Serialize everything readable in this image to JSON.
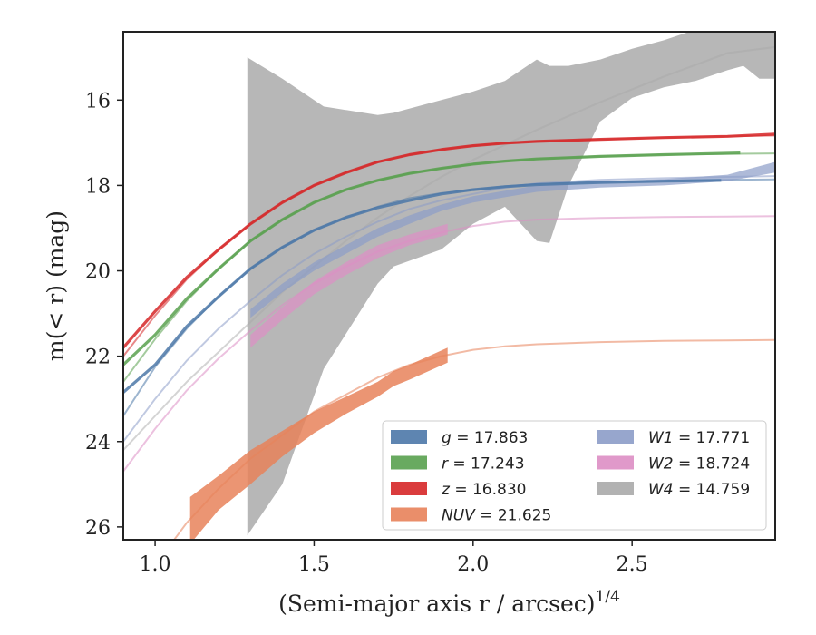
{
  "chart_data": {
    "type": "line",
    "xlabel": "(Semi-major axis r / arcsec)^{1/4}",
    "ylabel": "m(< r) (mag)",
    "xlim": [
      0.9,
      2.95
    ],
    "ylim": [
      26.3,
      14.4
    ],
    "y_inverted": true,
    "xticks": [
      "1.0",
      "1.5",
      "2.0",
      "2.5"
    ],
    "xtick_values": [
      1.0,
      1.5,
      2.0,
      2.5
    ],
    "yticks": [
      "16",
      "18",
      "20",
      "22",
      "24",
      "26"
    ],
    "ytick_values": [
      16,
      18,
      20,
      22,
      24,
      26
    ],
    "grid": false,
    "legend_position": "lower-right",
    "legend": [
      {
        "key": "g",
        "label": "g = 17.863",
        "color": "#4c78a8"
      },
      {
        "key": "r",
        "label": "r = 17.243",
        "color": "#59a14f"
      },
      {
        "key": "z",
        "label": "z = 16.830",
        "color": "#d62728"
      },
      {
        "key": "nuv",
        "label": "NUV = 21.625",
        "color": "#e8825a"
      },
      {
        "key": "w1",
        "label": "W1 = 17.771",
        "color": "#8c9cc8"
      },
      {
        "key": "w2",
        "label": "W2 = 18.724",
        "color": "#dd8ec4"
      },
      {
        "key": "w4",
        "label": "W4 = 14.759",
        "color": "#aaaaaa"
      }
    ],
    "series": [
      {
        "name": "g = 17.863",
        "key": "g",
        "color": "#4c78a8",
        "model_x": [
          0.9,
          1.0,
          1.1,
          1.2,
          1.3,
          1.4,
          1.5,
          1.6,
          1.7,
          1.8,
          1.9,
          2.0,
          2.1,
          2.2,
          2.4,
          2.6,
          2.8,
          2.95
        ],
        "model_y": [
          23.4,
          22.25,
          21.35,
          20.6,
          19.95,
          19.45,
          19.05,
          18.75,
          18.5,
          18.3,
          18.18,
          18.1,
          18.02,
          17.97,
          17.92,
          17.89,
          17.87,
          17.86
        ],
        "data_x": [
          0.9,
          1.0,
          1.1,
          1.2,
          1.3,
          1.4,
          1.5,
          1.6,
          1.7,
          1.8,
          1.9,
          2.0,
          2.1,
          2.2,
          2.4,
          2.6,
          2.78
        ],
        "data_y": [
          22.85,
          22.2,
          21.3,
          20.6,
          19.95,
          19.45,
          19.05,
          18.75,
          18.52,
          18.35,
          18.2,
          18.1,
          18.03,
          17.98,
          17.93,
          17.9,
          17.88
        ]
      },
      {
        "name": "r = 17.243",
        "key": "r",
        "color": "#59a14f",
        "model_x": [
          0.9,
          1.0,
          1.1,
          1.2,
          1.3,
          1.4,
          1.5,
          1.6,
          1.7,
          1.8,
          1.9,
          2.0,
          2.1,
          2.2,
          2.4,
          2.6,
          2.8,
          2.95
        ],
        "model_y": [
          22.6,
          21.6,
          20.7,
          19.95,
          19.3,
          18.8,
          18.4,
          18.1,
          17.88,
          17.72,
          17.6,
          17.5,
          17.43,
          17.38,
          17.32,
          17.28,
          17.26,
          17.25
        ],
        "data_x": [
          0.9,
          1.0,
          1.1,
          1.2,
          1.3,
          1.4,
          1.5,
          1.6,
          1.7,
          1.8,
          1.9,
          2.0,
          2.1,
          2.2,
          2.4,
          2.6,
          2.84
        ],
        "data_y": [
          22.2,
          21.5,
          20.65,
          19.95,
          19.3,
          18.8,
          18.4,
          18.1,
          17.88,
          17.72,
          17.6,
          17.5,
          17.43,
          17.38,
          17.32,
          17.28,
          17.24
        ]
      },
      {
        "name": "z = 16.830",
        "key": "z",
        "color": "#d62728",
        "model_x": [
          0.9,
          1.0,
          1.1,
          1.2,
          1.3,
          1.4,
          1.5,
          1.6,
          1.7,
          1.8,
          1.9,
          2.0,
          2.1,
          2.2,
          2.4,
          2.6,
          2.8,
          2.95
        ],
        "model_y": [
          22.0,
          21.05,
          20.2,
          19.5,
          18.9,
          18.4,
          18.0,
          17.7,
          17.45,
          17.28,
          17.16,
          17.07,
          17.01,
          16.97,
          16.92,
          16.88,
          16.85,
          16.83
        ],
        "data_x": [
          0.9,
          1.0,
          1.1,
          1.2,
          1.3,
          1.4,
          1.5,
          1.6,
          1.7,
          1.8,
          1.9,
          2.0,
          2.1,
          2.2,
          2.4,
          2.6,
          2.8,
          2.95
        ],
        "data_y": [
          21.8,
          20.95,
          20.15,
          19.5,
          18.9,
          18.4,
          18.0,
          17.7,
          17.45,
          17.28,
          17.16,
          17.07,
          17.01,
          16.97,
          16.92,
          16.88,
          16.85,
          16.8
        ]
      },
      {
        "name": "NUV = 21.625",
        "key": "nuv",
        "color": "#e8825a",
        "model_x": [
          1.0,
          1.1,
          1.2,
          1.3,
          1.4,
          1.5,
          1.6,
          1.7,
          1.8,
          1.9,
          2.0,
          2.1,
          2.2,
          2.4,
          2.6,
          2.8,
          2.95
        ],
        "model_y": [
          26.9,
          25.9,
          25.1,
          24.4,
          23.85,
          23.3,
          22.9,
          22.5,
          22.2,
          22.0,
          21.85,
          21.77,
          21.72,
          21.67,
          21.64,
          21.63,
          21.62
        ],
        "band_x": [
          1.11,
          1.2,
          1.3,
          1.4,
          1.5,
          1.6,
          1.7,
          1.75,
          1.8,
          1.92
        ],
        "band_lo": [
          25.3,
          24.8,
          24.2,
          23.75,
          23.3,
          22.95,
          22.6,
          22.35,
          22.2,
          21.8
        ],
        "band_hi": [
          26.4,
          25.6,
          25.0,
          24.35,
          23.8,
          23.35,
          22.95,
          22.7,
          22.55,
          22.15
        ]
      },
      {
        "name": "W1 = 17.771",
        "key": "w1",
        "color": "#8c9cc8",
        "model_x": [
          0.9,
          1.0,
          1.1,
          1.2,
          1.3,
          1.4,
          1.5,
          1.6,
          1.7,
          1.8,
          1.9,
          2.0,
          2.1,
          2.2,
          2.4,
          2.6,
          2.8,
          2.95
        ],
        "model_y": [
          24.0,
          23.0,
          22.1,
          21.35,
          20.7,
          20.1,
          19.6,
          19.2,
          18.85,
          18.55,
          18.35,
          18.2,
          18.05,
          17.95,
          17.87,
          17.83,
          17.8,
          17.78
        ],
        "band_x": [
          1.3,
          1.4,
          1.5,
          1.6,
          1.7,
          1.8,
          1.9,
          2.0,
          2.2,
          2.4,
          2.6,
          2.8,
          2.95
        ],
        "band_lo": [
          20.9,
          20.3,
          19.8,
          19.4,
          19.0,
          18.7,
          18.45,
          18.25,
          18.0,
          17.9,
          17.85,
          17.75,
          17.45
        ],
        "band_hi": [
          21.1,
          20.5,
          20.0,
          19.6,
          19.2,
          18.9,
          18.6,
          18.4,
          18.15,
          18.05,
          18.0,
          17.9,
          17.7
        ]
      },
      {
        "name": "W2 = 18.724",
        "key": "w2",
        "color": "#dd8ec4",
        "model_x": [
          0.9,
          1.0,
          1.1,
          1.2,
          1.3,
          1.4,
          1.5,
          1.6,
          1.7,
          1.8,
          1.9,
          2.0,
          2.1,
          2.2,
          2.4,
          2.6,
          2.8,
          2.95
        ],
        "model_y": [
          24.7,
          23.7,
          22.8,
          22.05,
          21.4,
          20.8,
          20.3,
          19.9,
          19.55,
          19.3,
          19.1,
          18.95,
          18.85,
          18.8,
          18.76,
          18.74,
          18.73,
          18.72
        ],
        "band_x": [
          1.3,
          1.4,
          1.5,
          1.6,
          1.7,
          1.8,
          1.92
        ],
        "band_lo": [
          21.5,
          20.85,
          20.25,
          19.8,
          19.4,
          19.15,
          18.9
        ],
        "band_hi": [
          21.8,
          21.15,
          20.55,
          20.1,
          19.7,
          19.4,
          19.15
        ]
      },
      {
        "name": "W4 = 14.759",
        "key": "w4",
        "color": "#aaaaaa",
        "model_x": [
          0.9,
          1.0,
          1.1,
          1.2,
          1.3,
          1.4,
          1.5,
          1.6,
          1.7,
          1.8,
          1.9,
          2.0,
          2.1,
          2.2,
          2.4,
          2.6,
          2.8,
          2.95
        ],
        "model_y": [
          24.2,
          23.4,
          22.6,
          21.9,
          21.2,
          20.5,
          19.9,
          19.3,
          18.75,
          18.25,
          17.8,
          17.4,
          17.05,
          16.7,
          16.05,
          15.45,
          14.9,
          14.76
        ],
        "band_x": [
          1.29,
          1.4,
          1.53,
          1.7,
          1.75,
          1.9,
          2.0,
          2.1,
          2.2,
          2.24,
          2.3,
          2.4,
          2.5,
          2.6,
          2.7,
          2.8,
          2.85,
          2.9,
          2.95
        ],
        "band_lo": [
          15.0,
          15.5,
          16.15,
          16.35,
          16.3,
          16.0,
          15.8,
          15.55,
          15.05,
          15.2,
          15.2,
          15.05,
          14.8,
          14.6,
          14.35,
          14.2,
          14.3,
          14.3,
          14.3
        ],
        "band_hi": [
          26.2,
          25.0,
          22.3,
          20.3,
          19.9,
          19.5,
          18.9,
          18.5,
          19.3,
          19.35,
          18.0,
          16.5,
          15.95,
          15.7,
          15.55,
          15.3,
          15.2,
          15.5,
          15.5
        ]
      }
    ]
  }
}
